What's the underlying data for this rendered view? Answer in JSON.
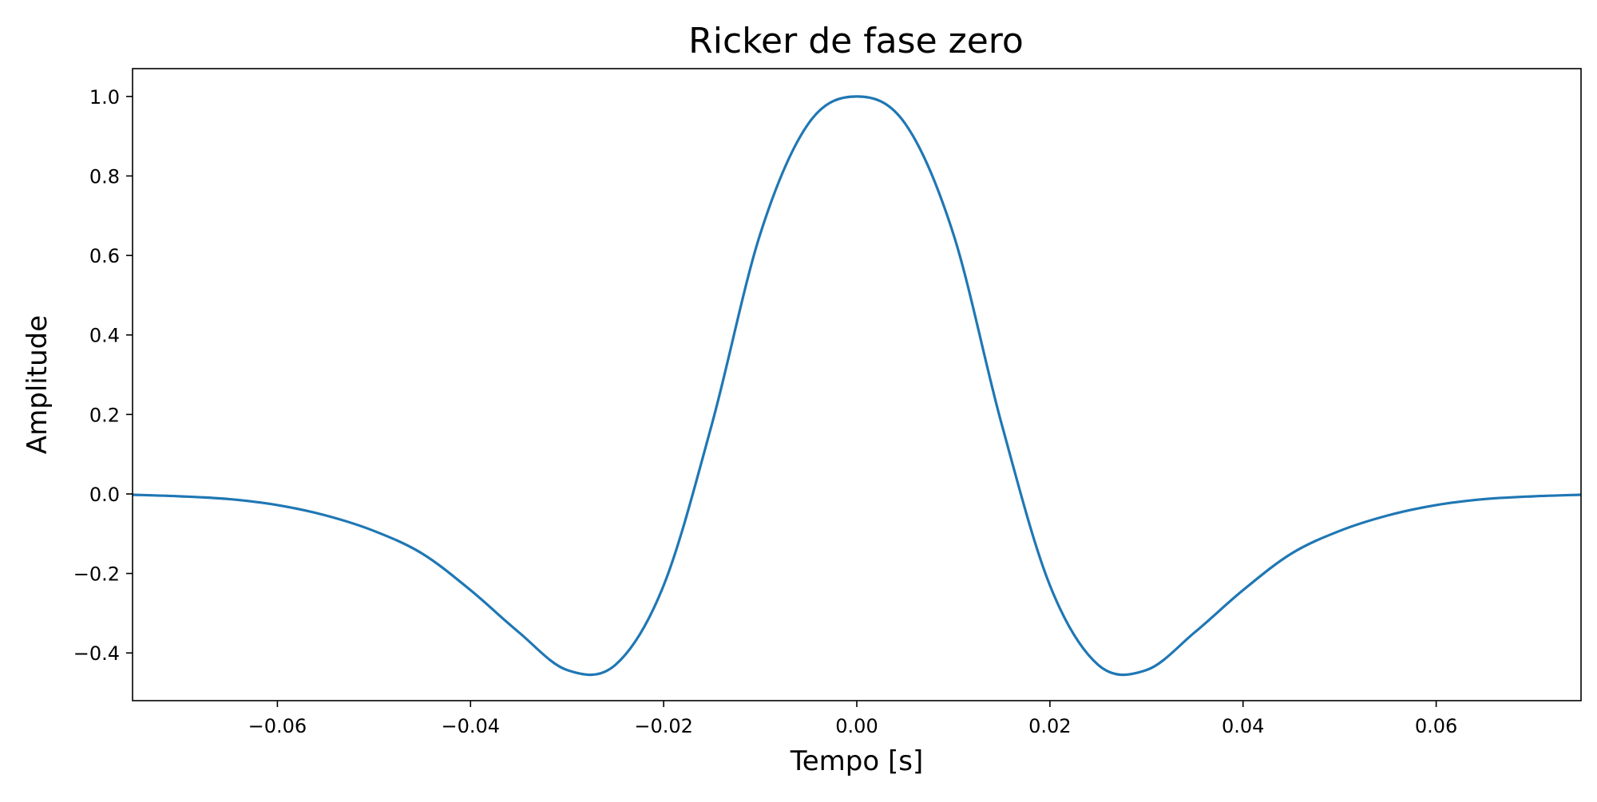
{
  "chart_data": {
    "type": "line",
    "title": "Ricker de fase zero",
    "xlabel": "Tempo [s]",
    "ylabel": "Amplitude",
    "xlim": [
      -0.075,
      0.075
    ],
    "ylim": [
      -0.52,
      1.07
    ],
    "xticks": [
      -0.06,
      -0.04,
      -0.02,
      0.0,
      0.02,
      0.04,
      0.06
    ],
    "xtick_labels": [
      "−0.06",
      "−0.04",
      "−0.02",
      "0.00",
      "0.02",
      "0.04",
      "0.06"
    ],
    "yticks": [
      -0.4,
      -0.2,
      0.0,
      0.2,
      0.4,
      0.6,
      0.8,
      1.0
    ],
    "ytick_labels": [
      "−0.4",
      "−0.2",
      "0.0",
      "0.2",
      "0.4",
      "0.6",
      "0.8",
      "1.0"
    ],
    "grid": false,
    "series": [
      {
        "color": "#1f77b4",
        "x": [
          -0.075,
          -0.07,
          -0.065,
          -0.06,
          -0.055,
          -0.05,
          -0.045,
          -0.04,
          -0.035,
          -0.03,
          -0.025,
          -0.02,
          -0.015,
          -0.01,
          -0.005,
          0.0,
          0.005,
          0.01,
          0.015,
          0.02,
          0.025,
          0.03,
          0.035,
          0.04,
          0.045,
          0.05,
          0.055,
          0.06,
          0.065,
          0.07,
          0.075
        ],
        "y": [
          -0.002,
          -0.006,
          -0.013,
          -0.028,
          -0.054,
          -0.093,
          -0.15,
          -0.242,
          -0.348,
          -0.443,
          -0.43,
          -0.23,
          0.176,
          0.654,
          0.932,
          1.0,
          0.932,
          0.654,
          0.176,
          -0.23,
          -0.43,
          -0.443,
          -0.348,
          -0.242,
          -0.15,
          -0.093,
          -0.054,
          -0.028,
          -0.013,
          -0.006,
          -0.002
        ]
      }
    ]
  }
}
